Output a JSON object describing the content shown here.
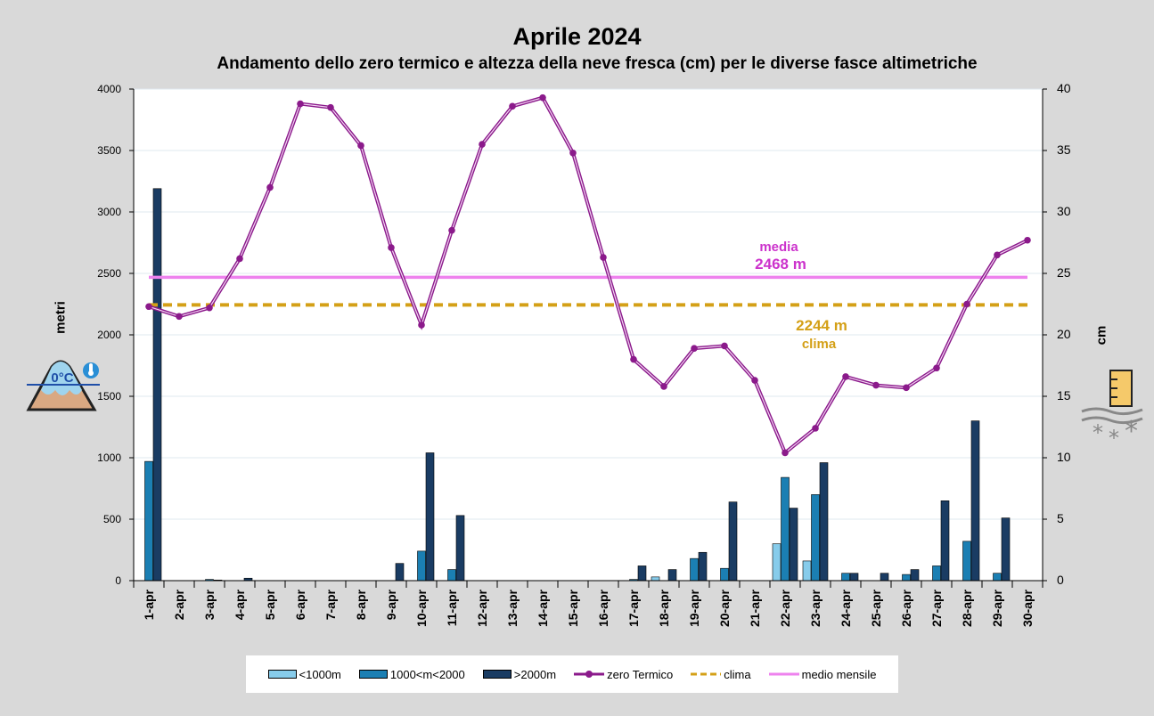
{
  "title": "Aprile 2024",
  "subtitle": "Andamento dello zero termico e altezza della neve fresca (cm) per le diverse fasce altimetriche",
  "chart_data": {
    "type": "bar",
    "categories": [
      "1-apr",
      "2-apr",
      "3-apr",
      "4-apr",
      "5-apr",
      "6-apr",
      "7-apr",
      "8-apr",
      "9-apr",
      "10-apr",
      "11-apr",
      "12-apr",
      "13-apr",
      "14-apr",
      "15-apr",
      "16-apr",
      "17-apr",
      "18-apr",
      "19-apr",
      "20-apr",
      "21-apr",
      "22-apr",
      "23-apr",
      "24-apr",
      "25-apr",
      "26-apr",
      "27-apr",
      "28-apr",
      "29-apr",
      "30-apr"
    ],
    "ylabel": "metri",
    "y2label": "cm",
    "ylim": [
      0,
      4000
    ],
    "y2lim": [
      0,
      40
    ],
    "yticks": [
      0,
      500,
      1000,
      1500,
      2000,
      2500,
      3000,
      3500,
      4000
    ],
    "y2ticks": [
      0,
      5,
      10,
      15,
      20,
      25,
      30,
      35,
      40
    ],
    "series": [
      {
        "name": "<1000m",
        "axis": "right",
        "kind": "bar",
        "color": "#87cceb",
        "values": [
          0,
          0,
          0,
          0,
          0,
          0,
          0,
          0,
          0,
          0,
          0,
          0,
          0,
          0,
          0,
          0,
          0,
          0.3,
          0,
          0,
          0,
          3.0,
          1.6,
          0,
          0,
          0,
          0,
          0,
          0,
          0
        ]
      },
      {
        "name": "1000<m<2000",
        "axis": "right",
        "kind": "bar",
        "color": "#1b7fb3",
        "values": [
          9.7,
          0,
          0.1,
          0,
          0,
          0,
          0,
          0,
          0,
          2.4,
          0.9,
          0,
          0,
          0,
          0,
          0,
          0.1,
          0,
          1.8,
          1.0,
          0,
          8.4,
          7.0,
          0.6,
          0,
          0.5,
          1.2,
          3.2,
          0.6,
          0
        ]
      },
      {
        "name": ">2000m",
        "axis": "right",
        "kind": "bar",
        "color": "#1a3c63",
        "values": [
          31.9,
          0,
          0.05,
          0.2,
          0,
          0,
          0,
          0,
          1.4,
          10.4,
          5.3,
          0,
          0,
          0,
          0,
          0,
          1.2,
          0.9,
          2.3,
          6.4,
          0,
          5.9,
          9.6,
          0.6,
          0.6,
          0.9,
          6.5,
          13.0,
          5.1,
          0
        ]
      },
      {
        "name": "zero Termico",
        "axis": "left",
        "kind": "line",
        "color": "#8b1a8b",
        "values": [
          2230,
          2150,
          2220,
          2620,
          3200,
          3880,
          3850,
          3540,
          2710,
          2080,
          2850,
          3550,
          3860,
          3930,
          3480,
          2630,
          1800,
          1580,
          1890,
          1910,
          1630,
          1040,
          1240,
          1660,
          1590,
          1570,
          1730,
          2250,
          2650,
          2770
        ]
      },
      {
        "name": "clima",
        "axis": "left",
        "kind": "hline",
        "color": "#d4a017",
        "value": 2244
      },
      {
        "name": "medio mensile",
        "axis": "left",
        "kind": "hline",
        "color": "#ee82ee",
        "value": 2468
      }
    ],
    "annotations": {
      "media_label": "media",
      "media_value": "2468 m",
      "clima_value": "2244 m",
      "clima_label": "clima"
    },
    "legend_position": "bottom"
  },
  "icons": [
    "zero-degree-mountain-icon",
    "snow-gauge-icon"
  ],
  "icon_text": "0°C"
}
